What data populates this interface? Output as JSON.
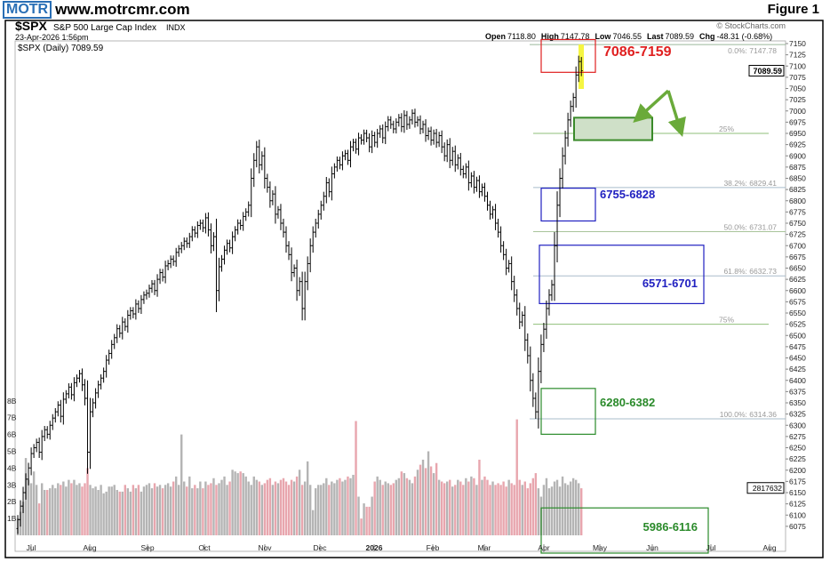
{
  "header": {
    "logo": "MOTR",
    "site": "www.motrcmr.com",
    "figure": "Figure 1"
  },
  "chart_data": {
    "type": "ohlc",
    "symbol": "$SPX",
    "name": "S&P 500 Large Cap Index",
    "exchange": "INDX",
    "timestamp": "23-Apr-2026 1:56pm",
    "legend": "$SPX (Daily) 7089.59",
    "credit": "© StockCharts.com",
    "quote": {
      "open_label": "Open",
      "open": "7118.80",
      "high_label": "High",
      "high": "7147.78",
      "low_label": "Low",
      "low": "7046.55",
      "last_label": "Last",
      "last": "7089.59",
      "chg_label": "Chg",
      "chg": "-48.31 (-0.68%)"
    },
    "price_tag": "7089.59",
    "volume_tag": "2817632",
    "ylim": [
      6050,
      7160
    ],
    "y_ticks": [
      6075,
      6100,
      6125,
      6150,
      6175,
      6200,
      6225,
      6250,
      6275,
      6300,
      6325,
      6350,
      6375,
      6400,
      6425,
      6450,
      6475,
      6500,
      6525,
      6550,
      6575,
      6600,
      6625,
      6650,
      6675,
      6700,
      6725,
      6750,
      6775,
      6800,
      6825,
      6850,
      6875,
      6900,
      6925,
      6950,
      6975,
      7000,
      7025,
      7050,
      7075,
      7100,
      7125,
      7150
    ],
    "volume_ticks": [
      "1B",
      "2B",
      "3B",
      "4B",
      "5B",
      "6B",
      "7B",
      "8B"
    ],
    "x_ticks": [
      "Jul",
      "Aug",
      "Sep",
      "Oct",
      "Nov",
      "Dec",
      "2026",
      "Feb",
      "Mar",
      "Apr",
      "May",
      "Jun",
      "Jul",
      "Aug"
    ],
    "closes": [
      6090,
      6120,
      6150,
      6180,
      6205,
      6237,
      6250,
      6262,
      6240,
      6275,
      6290,
      6280,
      6300,
      6316,
      6330,
      6345,
      6320,
      6358,
      6370,
      6385,
      6368,
      6395,
      6405,
      6415,
      6390,
      6360,
      6240,
      6330,
      6350,
      6372,
      6390,
      6405,
      6420,
      6445,
      6460,
      6480,
      6495,
      6515,
      6505,
      6530,
      6520,
      6545,
      6555,
      6548,
      6570,
      6560,
      6580,
      6590,
      6594,
      6605,
      6615,
      6600,
      6625,
      6640,
      6630,
      6655,
      6660,
      6670,
      6665,
      6685,
      6693,
      6700,
      6710,
      6705,
      6720,
      6735,
      6728,
      6745,
      6750,
      6740,
      6762,
      6735,
      6700,
      6720,
      6600,
      6653,
      6670,
      6690,
      6705,
      6695,
      6720,
      6735,
      6750,
      6745,
      6765,
      6775,
      6790,
      6850,
      6890,
      6920,
      6880,
      6900,
      6850,
      6830,
      6800,
      6815,
      6770,
      6780,
      6750,
      6730,
      6700,
      6680,
      6640,
      6650,
      6600,
      6620,
      6560,
      6620,
      6660,
      6700,
      6730,
      6750,
      6770,
      6790,
      6810,
      6840,
      6820,
      6860,
      6875,
      6890,
      6880,
      6900,
      6905,
      6890,
      6920,
      6930,
      6915,
      6940,
      6935,
      6950,
      6940,
      6920,
      6945,
      6930,
      6950,
      6960,
      6940,
      6965,
      6980,
      6970,
      6960,
      6975,
      6985,
      6965,
      6990,
      6970,
      6980,
      6995,
      6975,
      6980,
      6960,
      6970,
      6945,
      6955,
      6935,
      6950,
      6930,
      6945,
      6920,
      6900,
      6925,
      6890,
      6910,
      6880,
      6895,
      6870,
      6860,
      6875,
      6840,
      6855,
      6830,
      6845,
      6820,
      6830,
      6810,
      6790,
      6770,
      6780,
      6750,
      6730,
      6700,
      6680,
      6650,
      6660,
      6620,
      6590,
      6560,
      6530,
      6545,
      6490,
      6455,
      6400,
      6360,
      6330,
      6420,
      6480,
      6514,
      6560,
      6590,
      6613,
      6700,
      6790,
      6850,
      6900,
      6940,
      6980,
      7010,
      7030,
      7080,
      7110,
      7089.59
    ],
    "volume_billions": [
      1.0,
      1.4,
      2.0,
      4.6,
      3.3,
      3.1,
      3.8,
      3.0,
      1.9,
      3.1,
      2.7,
      2.7,
      2.8,
      3.0,
      2.8,
      3.1,
      3.0,
      3.2,
      2.9,
      3.3,
      3.1,
      3.3,
      3.0,
      3.1,
      2.9,
      3.1,
      4.0,
      3.0,
      2.8,
      2.9,
      2.7,
      3.0,
      2.5,
      2.6,
      2.9,
      2.9,
      3.0,
      2.7,
      2.6,
      2.6,
      3.0,
      2.8,
      2.6,
      3.0,
      2.8,
      3.0,
      2.6,
      2.9,
      3.0,
      3.1,
      2.8,
      3.1,
      2.9,
      3.0,
      2.8,
      3.0,
      3.1,
      2.9,
      3.2,
      3.5,
      3.0,
      6.0,
      3.2,
      2.9,
      3.5,
      2.8,
      3.0,
      2.8,
      3.2,
      2.8,
      3.2,
      3.0,
      3.1,
      3.4,
      3.0,
      3.1,
      3.3,
      3.5,
      3.0,
      3.2,
      3.9,
      3.8,
      3.7,
      3.8,
      3.7,
      3.5,
      3.2,
      3.0,
      3.5,
      3.3,
      3.2,
      3.0,
      3.1,
      3.3,
      3.4,
      3.0,
      3.2,
      3.1,
      3.3,
      3.4,
      3.2,
      3.0,
      3.3,
      3.2,
      3.5,
      3.9,
      3.0,
      3.2,
      4.4,
      3.0,
      1.5,
      2.8,
      3.0,
      3.0,
      3.1,
      3.4,
      3.0,
      3.2,
      3.1,
      3.3,
      3.4,
      3.2,
      3.3,
      3.5,
      3.4,
      3.6,
      6.8,
      2.3,
      1.0,
      1.9,
      1.7,
      1.7,
      2.3,
      3.2,
      3.5,
      3.3,
      3.0,
      3.2,
      3.1,
      3.0,
      3.1,
      3.3,
      3.4,
      3.8,
      3.7,
      3.4,
      3.3,
      3.1,
      3.5,
      3.9,
      4.2,
      4.5,
      4.0,
      5.0,
      4.1,
      3.7,
      4.3,
      3.3,
      3.2,
      3.1,
      3.2,
      3.3,
      2.9,
      3.0,
      3.3,
      3.2,
      3.0,
      3.4,
      3.2,
      3.5,
      3.4,
      3.0,
      4.5,
      3.3,
      3.5,
      3.3,
      3.0,
      3.2,
      3.0,
      3.1,
      3.0,
      3.2,
      2.9,
      3.3,
      3.1,
      3.0,
      6.9,
      3.3,
      3.0,
      3.2,
      2.8,
      3.1,
      3.4,
      3.7,
      2.8,
      2.3,
      3.0,
      3.4,
      2.8,
      2.9,
      3.2,
      3.3,
      2.9,
      3.5,
      3.1,
      3.0,
      3.2,
      3.4,
      3.3,
      3.1,
      2.8
    ],
    "fib_levels": [
      {
        "label": "0.0%: 7147.78",
        "price": 7147.78,
        "color": "#9ab89a"
      },
      {
        "label": "25%",
        "price": 6950,
        "color": "#8fbf7a"
      },
      {
        "label": "38.2%: 6829.41",
        "price": 6829.41,
        "color": "#a9bccb"
      },
      {
        "label": "50.0%: 6731.07",
        "price": 6731.07,
        "color": "#a9c49a"
      },
      {
        "label": "61.8%: 6632.73",
        "price": 6632.73,
        "color": "#a9bccb"
      },
      {
        "label": "75%",
        "price": 6525,
        "color": "#8fbf7a"
      },
      {
        "label": "100.0%: 6314.36",
        "price": 6314.36,
        "color": "#a9bccb"
      }
    ],
    "zones": [
      {
        "label": "7086-7159",
        "low": 7086,
        "high": 7159,
        "color": "#e02020"
      },
      {
        "label": "",
        "low": 6935,
        "high": 6985,
        "color": "#3a8a2a",
        "filled": true
      },
      {
        "label": "6755-6828",
        "low": 6755,
        "high": 6828,
        "color": "#2020c0"
      },
      {
        "label": "6571-6701",
        "low": 6571,
        "high": 6701,
        "color": "#2020c0"
      },
      {
        "label": "6280-6382",
        "low": 6280,
        "high": 6382,
        "color": "#2a8a2a"
      },
      {
        "label": "5986-6116",
        "low": 5986,
        "high": 6116,
        "color": "#2a8a2a"
      }
    ],
    "colors": {
      "up_volume": "#b4b4b4",
      "down_volume": "#e8a6ae",
      "bars": "#000000",
      "arrow": "#6aaa3a",
      "highlight": "#f5f542"
    }
  }
}
